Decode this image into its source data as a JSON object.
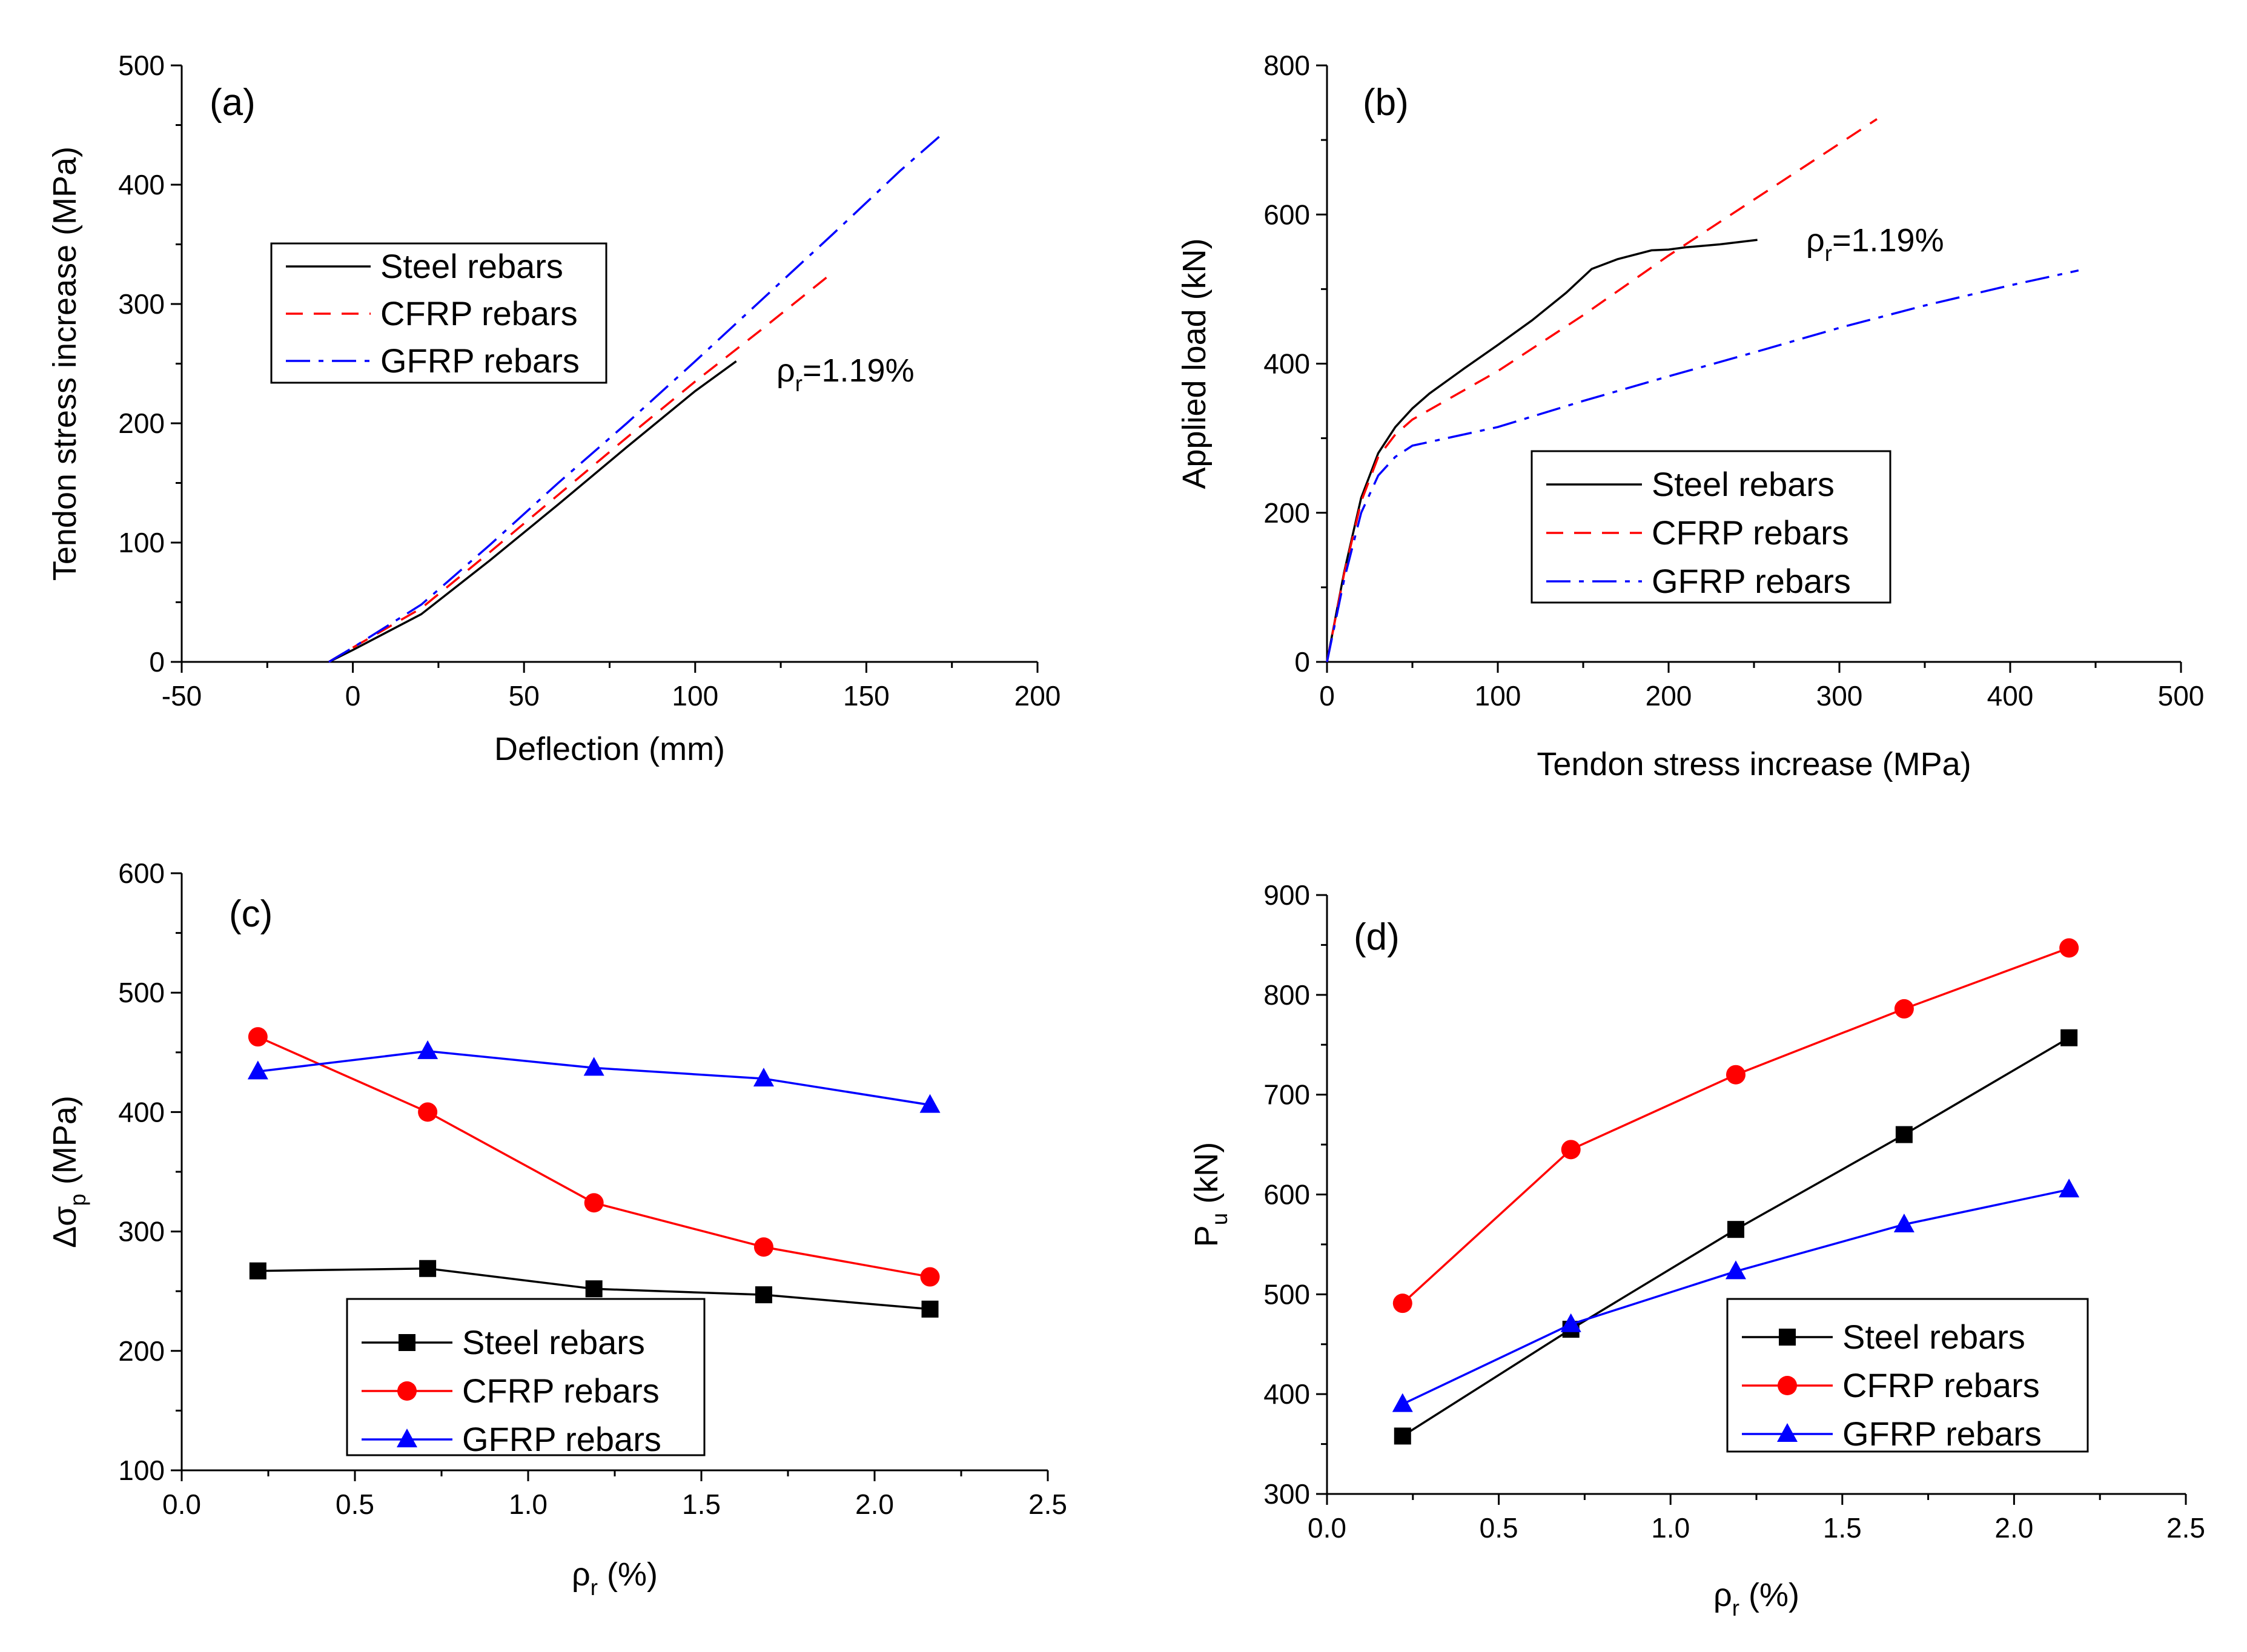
{
  "chart_data": [
    {
      "panel": "(a)",
      "type": "line",
      "xlabel": "Deflection (mm)",
      "ylabel": "Tendon stress increase (MPa)",
      "xlim": [
        -50,
        200
      ],
      "ylim": [
        0,
        500
      ],
      "xticks": [
        -50,
        0,
        50,
        100,
        150,
        200
      ],
      "yticks": [
        0,
        100,
        200,
        300,
        400,
        500
      ],
      "legend": [
        "Steel rebars",
        "CFRP rebars",
        "GFRP rebars"
      ],
      "legend_position": "middle-left",
      "annotation": {
        "base": "ρ",
        "sub": "r",
        "text": "=1.19%"
      },
      "series": [
        {
          "name": "Steel rebars",
          "color": "#000000",
          "dash": "solid",
          "x": [
            -7,
            0,
            20,
            40,
            60,
            80,
            100,
            112
          ],
          "y": [
            0,
            10,
            40,
            85,
            132,
            180,
            227,
            252
          ]
        },
        {
          "name": "CFRP rebars",
          "color": "#ff0000",
          "dash": "dash",
          "x": [
            -7,
            0,
            20,
            40,
            60,
            80,
            100,
            120,
            140
          ],
          "y": [
            0,
            12,
            45,
            92,
            140,
            188,
            235,
            280,
            326
          ]
        },
        {
          "name": "GFRP rebars",
          "color": "#0000ff",
          "dash": "dashdot",
          "x": [
            -7,
            0,
            20,
            40,
            60,
            80,
            100,
            120,
            140,
            160,
            172
          ],
          "y": [
            0,
            12,
            48,
            98,
            150,
            200,
            252,
            305,
            358,
            412,
            442
          ]
        }
      ]
    },
    {
      "panel": "(b)",
      "type": "line",
      "xlabel": "Tendon stress increase (MPa)",
      "ylabel": "Applied load (kN)",
      "xlim": [
        0,
        500
      ],
      "ylim": [
        0,
        800
      ],
      "xticks": [
        0,
        100,
        200,
        300,
        400,
        500
      ],
      "yticks": [
        0,
        200,
        400,
        600,
        800
      ],
      "legend": [
        "Steel rebars",
        "CFRP rebars",
        "GFRP rebars"
      ],
      "legend_position": "lower-center",
      "annotation": {
        "base": "ρ",
        "sub": "r",
        "text": "=1.19%"
      },
      "series": [
        {
          "name": "Steel rebars",
          "color": "#000000",
          "dash": "solid",
          "x": [
            0,
            10,
            20,
            30,
            40,
            50,
            60,
            80,
            100,
            120,
            140,
            155,
            170,
            190,
            200,
            210,
            230,
            252
          ],
          "y": [
            0,
            120,
            220,
            280,
            315,
            340,
            360,
            393,
            425,
            458,
            495,
            527,
            540,
            552,
            553,
            556,
            560,
            566
          ]
        },
        {
          "name": "CFRP rebars",
          "color": "#ff0000",
          "dash": "dash",
          "x": [
            0,
            10,
            20,
            30,
            40,
            50,
            100,
            150,
            200,
            250,
            300,
            322
          ],
          "y": [
            0,
            118,
            215,
            275,
            305,
            325,
            390,
            465,
            545,
            620,
            695,
            728
          ]
        },
        {
          "name": "GFRP rebars",
          "color": "#0000ff",
          "dash": "dashdot",
          "x": [
            0,
            10,
            20,
            30,
            40,
            50,
            60,
            100,
            150,
            200,
            250,
            300,
            350,
            400,
            440
          ],
          "y": [
            0,
            110,
            200,
            250,
            275,
            290,
            295,
            315,
            350,
            383,
            415,
            448,
            478,
            505,
            525
          ]
        }
      ]
    },
    {
      "panel": "(c)",
      "type": "line",
      "xlabel": {
        "base": "ρ",
        "sub": "r",
        "text": " (%)"
      },
      "ylabel": {
        "base": "Δσ",
        "sub": "p",
        "text": " (MPa)"
      },
      "xlim": [
        0.0,
        2.5
      ],
      "ylim": [
        100,
        600
      ],
      "xticks": [
        0.0,
        0.5,
        1.0,
        1.5,
        2.0,
        2.5
      ],
      "yticks": [
        100,
        200,
        300,
        400,
        500,
        600
      ],
      "legend": [
        "Steel rebars",
        "CFRP rebars",
        "GFRP rebars"
      ],
      "legend_position": "lower-center",
      "x": [
        0.22,
        0.71,
        1.19,
        1.68,
        2.16
      ],
      "series": [
        {
          "name": "Steel rebars",
          "color": "#000000",
          "marker": "square",
          "values": [
            267,
            269,
            252,
            247,
            235
          ]
        },
        {
          "name": "CFRP rebars",
          "color": "#ff0000",
          "marker": "circle",
          "values": [
            463,
            400,
            324,
            287,
            262
          ]
        },
        {
          "name": "GFRP rebars",
          "color": "#0000ff",
          "marker": "triangle",
          "values": [
            434,
            451,
            437,
            428,
            406
          ]
        }
      ]
    },
    {
      "panel": "(d)",
      "type": "line",
      "xlabel": {
        "base": "ρ",
        "sub": "r",
        "text": " (%)"
      },
      "ylabel": {
        "base": "P",
        "sub": "u",
        "text": " (kN)"
      },
      "xlim": [
        0.0,
        2.5
      ],
      "ylim": [
        300,
        900
      ],
      "xticks": [
        0.0,
        0.5,
        1.0,
        1.5,
        2.0,
        2.5
      ],
      "yticks": [
        300,
        400,
        500,
        600,
        700,
        800,
        900
      ],
      "legend": [
        "Steel rebars",
        "CFRP rebars",
        "GFRP rebars"
      ],
      "legend_position": "lower-right",
      "x": [
        0.22,
        0.71,
        1.19,
        1.68,
        2.16
      ],
      "series": [
        {
          "name": "Steel rebars",
          "color": "#000000",
          "marker": "square",
          "values": [
            358,
            465,
            565,
            660,
            757
          ]
        },
        {
          "name": "CFRP rebars",
          "color": "#ff0000",
          "marker": "circle",
          "values": [
            491,
            645,
            720,
            786,
            847
          ]
        },
        {
          "name": "GFRP rebars",
          "color": "#0000ff",
          "marker": "triangle",
          "values": [
            390,
            470,
            523,
            570,
            605
          ]
        }
      ]
    }
  ]
}
